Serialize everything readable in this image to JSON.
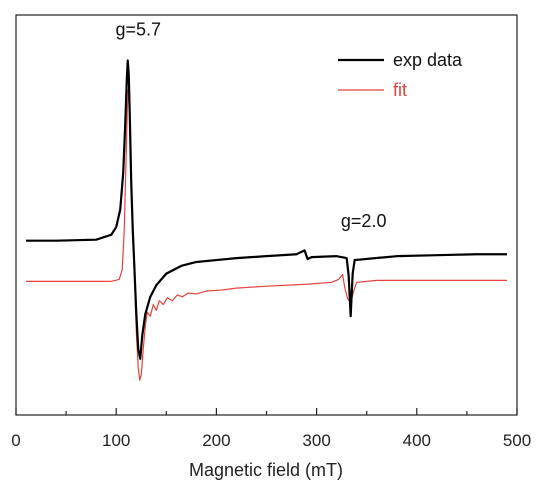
{
  "chart_data": {
    "type": "line",
    "title": "",
    "xlabel": "Magnetic field (mT)",
    "ylabel": "",
    "xlim": [
      0,
      500
    ],
    "xticks": [
      0,
      100,
      200,
      300,
      400,
      500
    ],
    "x_minor_step": 50,
    "y_ticks_shown": false,
    "grid": false,
    "legend_position": "top-right",
    "series": [
      {
        "name": "exp data",
        "color": "#000000",
        "points": [
          [
            10,
            2.0
          ],
          [
            40,
            2.0
          ],
          [
            80,
            2.05
          ],
          [
            95,
            2.3
          ],
          [
            100,
            2.7
          ],
          [
            104,
            3.6
          ],
          [
            107,
            5.5
          ],
          [
            109,
            8.0
          ],
          [
            110.5,
            10.2
          ],
          [
            111.5,
            11.3
          ],
          [
            112.5,
            10.6
          ],
          [
            113.5,
            8.6
          ],
          [
            115,
            5.0
          ],
          [
            116.5,
            2.6
          ],
          [
            118,
            0.8
          ],
          [
            120,
            -1.7
          ],
          [
            122,
            -3.6
          ],
          [
            124,
            -4.1
          ],
          [
            126,
            -2.9
          ],
          [
            129,
            -1.8
          ],
          [
            134,
            -0.9
          ],
          [
            140,
            -0.3
          ],
          [
            150,
            0.3
          ],
          [
            165,
            0.7
          ],
          [
            180,
            0.9
          ],
          [
            200,
            1.0
          ],
          [
            220,
            1.1
          ],
          [
            250,
            1.2
          ],
          [
            280,
            1.3
          ],
          [
            288,
            1.5
          ],
          [
            291,
            1.05
          ],
          [
            295,
            1.15
          ],
          [
            320,
            1.2
          ],
          [
            330,
            1.1
          ],
          [
            332,
            0.2
          ],
          [
            334,
            -1.9
          ],
          [
            336,
            0.3
          ],
          [
            338,
            1.0
          ],
          [
            380,
            1.2
          ],
          [
            420,
            1.25
          ],
          [
            460,
            1.3
          ],
          [
            490,
            1.3
          ]
        ]
      },
      {
        "name": "fit",
        "color": "#e8423c",
        "points": [
          [
            10,
            -0.1
          ],
          [
            95,
            -0.1
          ],
          [
            103,
            0.0
          ],
          [
            106,
            0.5
          ],
          [
            108,
            2.5
          ],
          [
            109.5,
            5.5
          ],
          [
            111,
            8.6
          ],
          [
            112,
            9.8
          ],
          [
            113,
            9.0
          ],
          [
            114.5,
            6.5
          ],
          [
            116,
            3.5
          ],
          [
            118,
            0.5
          ],
          [
            120,
            -2.6
          ],
          [
            122,
            -4.6
          ],
          [
            123.5,
            -5.2
          ],
          [
            125,
            -4.9
          ],
          [
            127,
            -3.6
          ],
          [
            129,
            -2.4
          ],
          [
            131,
            -1.7
          ],
          [
            134,
            -1.9
          ],
          [
            137,
            -1.3
          ],
          [
            140,
            -1.6
          ],
          [
            143,
            -1.1
          ],
          [
            147,
            -1.3
          ],
          [
            151,
            -0.95
          ],
          [
            156,
            -1.1
          ],
          [
            161,
            -0.8
          ],
          [
            166,
            -0.9
          ],
          [
            172,
            -0.7
          ],
          [
            180,
            -0.75
          ],
          [
            190,
            -0.6
          ],
          [
            205,
            -0.55
          ],
          [
            220,
            -0.45
          ],
          [
            250,
            -0.35
          ],
          [
            290,
            -0.25
          ],
          [
            315,
            -0.15
          ],
          [
            322,
            0.0
          ],
          [
            326,
            0.25
          ],
          [
            328,
            -0.4
          ],
          [
            331,
            -1.0
          ],
          [
            334,
            -1.2
          ],
          [
            337,
            -0.6
          ],
          [
            340,
            -0.15
          ],
          [
            360,
            -0.05
          ],
          [
            490,
            -0.05
          ]
        ]
      }
    ],
    "annotations": [
      {
        "text": "g=5.7",
        "x": 122,
        "y": 12.6
      },
      {
        "text": "g=2.0",
        "x": 347,
        "y": 2.7
      }
    ]
  }
}
